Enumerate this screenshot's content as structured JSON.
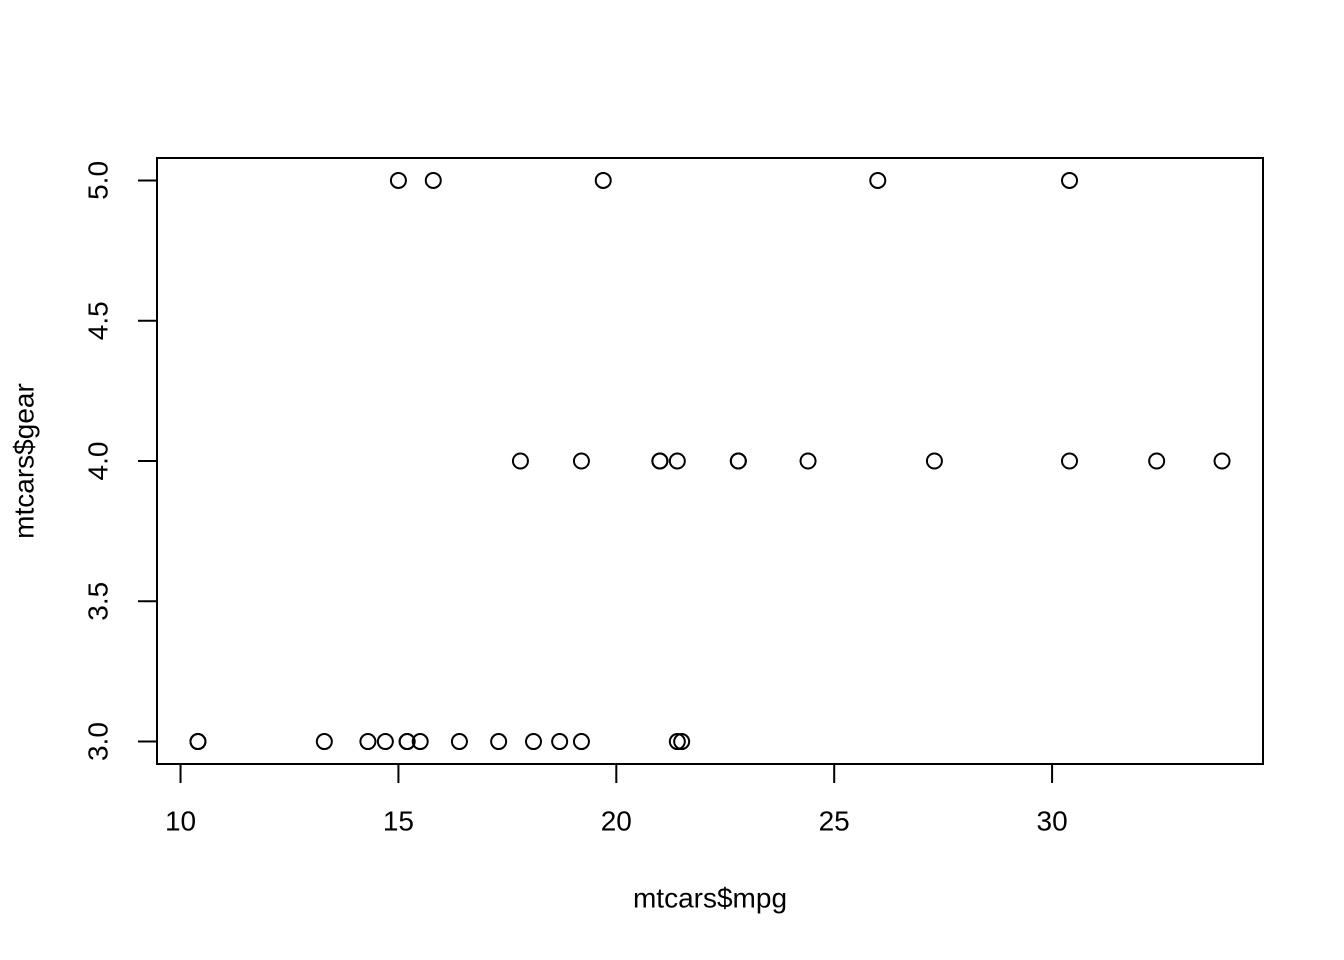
{
  "chart_data": {
    "type": "scatter",
    "x_label": "mtcars$mpg",
    "y_label": "mtcars$gear",
    "x": [
      21.0,
      21.0,
      22.8,
      21.4,
      18.7,
      18.1,
      14.3,
      24.4,
      22.8,
      19.2,
      17.8,
      16.4,
      17.3,
      15.2,
      10.4,
      10.4,
      14.7,
      32.4,
      30.4,
      33.9,
      21.5,
      15.5,
      15.2,
      13.3,
      19.2,
      27.3,
      26.0,
      30.4,
      15.8,
      19.7,
      15.0,
      21.4
    ],
    "values": [
      4,
      4,
      4,
      3,
      3,
      3,
      3,
      4,
      4,
      4,
      4,
      3,
      3,
      3,
      3,
      3,
      3,
      4,
      4,
      4,
      3,
      3,
      3,
      3,
      3,
      4,
      5,
      5,
      5,
      5,
      5,
      4
    ],
    "color": "#000000",
    "xlim": [
      9.46,
      34.84
    ],
    "ylim": [
      2.92,
      5.08
    ],
    "xticks": [
      10,
      15,
      20,
      25,
      30
    ],
    "yticks": [
      {
        "value": 3,
        "label": "3.0"
      },
      {
        "value": 3.5,
        "label": "3.5"
      },
      {
        "value": 4,
        "label": "4.0"
      },
      {
        "value": 4.5,
        "label": "4.5"
      },
      {
        "value": 5,
        "label": "5.0"
      }
    ]
  }
}
